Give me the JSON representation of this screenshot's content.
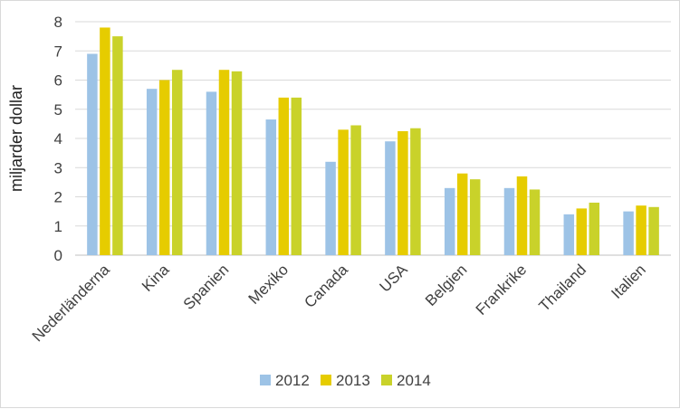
{
  "chart_data": {
    "type": "bar",
    "title": "",
    "xlabel": "",
    "ylabel": "miljarder dollar",
    "ylim": [
      0,
      8
    ],
    "yticks": [
      0,
      1,
      2,
      3,
      4,
      5,
      6,
      7,
      8
    ],
    "grid": true,
    "legend_position": "bottom",
    "categories": [
      "Nederländerna",
      "Kina",
      "Spanien",
      "Mexiko",
      "Canada",
      "USA",
      "Belgien",
      "Frankrike",
      "Thailand",
      "Italien"
    ],
    "series": [
      {
        "name": "2012",
        "color": "#9dc3e6",
        "values": [
          6.9,
          5.7,
          5.6,
          4.65,
          3.2,
          3.9,
          2.3,
          2.3,
          1.4,
          1.5
        ]
      },
      {
        "name": "2013",
        "color": "#e6cc00",
        "values": [
          7.8,
          6.0,
          6.35,
          5.4,
          4.3,
          4.25,
          2.8,
          2.7,
          1.6,
          1.7
        ]
      },
      {
        "name": "2014",
        "color": "#c9d22a",
        "values": [
          7.5,
          6.35,
          6.3,
          5.4,
          4.45,
          4.35,
          2.6,
          2.25,
          1.8,
          1.65
        ]
      }
    ]
  }
}
